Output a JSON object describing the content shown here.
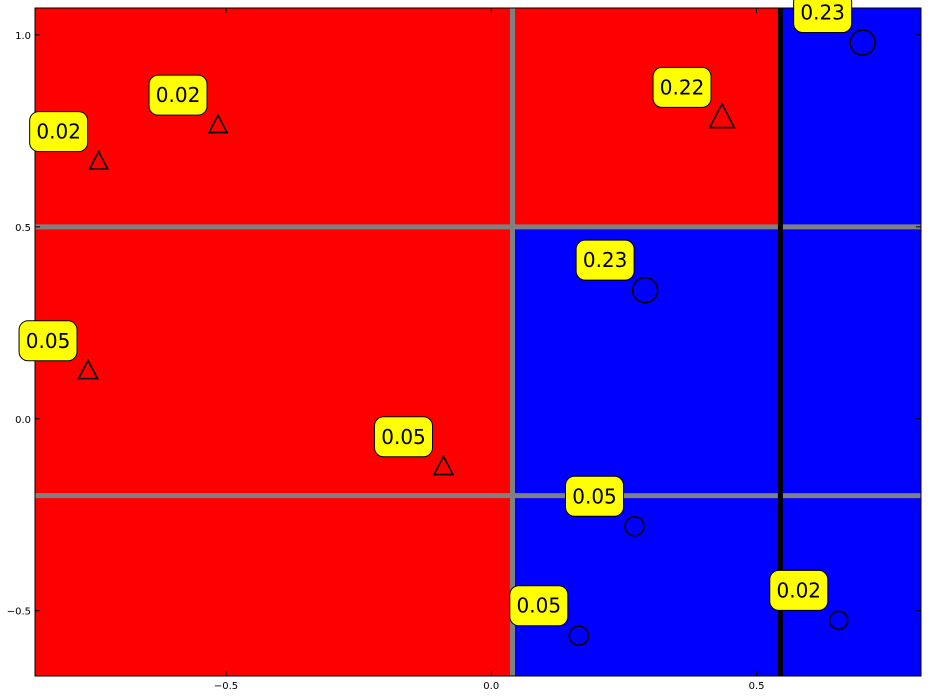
{
  "chart_data": {
    "type": "scatter",
    "title": "",
    "xlabel": "",
    "ylabel": "",
    "xlim": [
      -0.86,
      0.81
    ],
    "ylim": [
      -0.67,
      1.07
    ],
    "grid": false,
    "xticks": [
      -0.5,
      0.0,
      0.5
    ],
    "xtick_labels": [
      "−0.5",
      "0.0",
      "0.5"
    ],
    "yticks": [
      -0.5,
      0.0,
      0.5,
      1.0
    ],
    "ytick_labels": [
      "−0.5",
      "0.0",
      "0.5",
      "1.0"
    ],
    "regions": [
      {
        "x": [
          -0.86,
          0.04
        ],
        "y": [
          -0.67,
          1.07
        ],
        "color": "#ff0000"
      },
      {
        "x": [
          0.04,
          0.545
        ],
        "y": [
          0.5,
          1.07
        ],
        "color": "#ff0000"
      },
      {
        "x": [
          0.04,
          0.545
        ],
        "y": [
          -0.67,
          0.5
        ],
        "color": "#0000ff"
      },
      {
        "x": [
          0.545,
          0.81
        ],
        "y": [
          -0.67,
          1.07
        ],
        "color": "#0000ff"
      }
    ],
    "split_lines": [
      {
        "orientation": "vertical",
        "value": 0.04,
        "range": [
          -0.67,
          1.07
        ],
        "color": "#808080"
      },
      {
        "orientation": "horizontal",
        "value": 0.5,
        "range": [
          -0.86,
          0.81
        ],
        "color": "#808080"
      },
      {
        "orientation": "horizontal",
        "value": -0.2,
        "range": [
          -0.86,
          0.81
        ],
        "color": "#808080"
      },
      {
        "orientation": "vertical",
        "value": 0.545,
        "range": [
          -0.67,
          1.07
        ],
        "color": "#000000"
      }
    ],
    "points": [
      {
        "x": -0.74,
        "y": 0.67,
        "marker": "triangle",
        "weight": 0.02,
        "label": "0.02"
      },
      {
        "x": -0.515,
        "y": 0.765,
        "marker": "triangle",
        "weight": 0.02,
        "label": "0.02"
      },
      {
        "x": -0.76,
        "y": 0.125,
        "marker": "triangle",
        "weight": 0.05,
        "label": "0.05"
      },
      {
        "x": -0.09,
        "y": -0.125,
        "marker": "triangle",
        "weight": 0.05,
        "label": "0.05"
      },
      {
        "x": 0.435,
        "y": 0.785,
        "marker": "triangle",
        "weight": 0.22,
        "label": "0.22"
      },
      {
        "x": 0.7,
        "y": 0.98,
        "marker": "circle",
        "weight": 0.23,
        "label": "0.23"
      },
      {
        "x": 0.29,
        "y": 0.335,
        "marker": "circle",
        "weight": 0.23,
        "label": "0.23"
      },
      {
        "x": 0.27,
        "y": -0.28,
        "marker": "circle",
        "weight": 0.05,
        "label": "0.05"
      },
      {
        "x": 0.165,
        "y": -0.565,
        "marker": "circle",
        "weight": 0.05,
        "label": "0.05"
      },
      {
        "x": 0.655,
        "y": -0.525,
        "marker": "circle",
        "weight": 0.02,
        "label": "0.02"
      }
    ],
    "annotation_style": {
      "box_color": "#ffff00",
      "text_color": "#000000"
    }
  }
}
